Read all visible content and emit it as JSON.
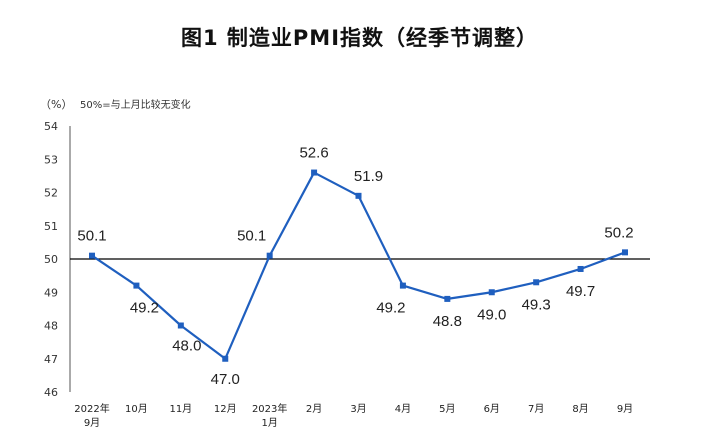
{
  "chart_data": {
    "type": "line",
    "title": "图1 制造业PMI指数（经季节调整）",
    "unit_label": "（%）",
    "note": "50%=与上月比较无变化",
    "ylim": [
      46,
      54
    ],
    "yticks": [
      "46",
      "47",
      "48",
      "49",
      "50",
      "51",
      "52",
      "53",
      "54"
    ],
    "reference_line": 50,
    "color": "#1f5fbf",
    "categories": [
      [
        "2022年",
        "9月"
      ],
      [
        "10月"
      ],
      [
        "11月"
      ],
      [
        "12月"
      ],
      [
        "2023年",
        "1月"
      ],
      [
        "2月"
      ],
      [
        "3月"
      ],
      [
        "4月"
      ],
      [
        "5月"
      ],
      [
        "6月"
      ],
      [
        "7月"
      ],
      [
        "8月"
      ],
      [
        "9月"
      ]
    ],
    "values": [
      50.1,
      49.2,
      48.0,
      47.0,
      50.1,
      52.6,
      51.9,
      49.2,
      48.8,
      49.0,
      49.3,
      49.7,
      50.2
    ],
    "data_labels": [
      "50.1",
      "49.2",
      "48.0",
      "47.0",
      "50.1",
      "52.6",
      "51.9",
      "49.2",
      "48.8",
      "49.0",
      "49.3",
      "49.7",
      "50.2"
    ]
  }
}
